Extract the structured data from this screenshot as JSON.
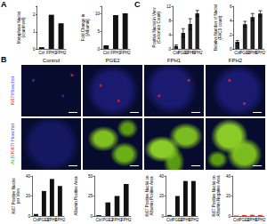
{
  "panel_labels": [
    "A",
    "B",
    "C"
  ],
  "images": {
    "columns": [
      "Control",
      "PGE2",
      "FPH1",
      "FPH2"
    ],
    "rows": [
      {
        "label": [
          {
            "text": "Ki67",
            "color": "#e02828"
          },
          {
            "text": "/",
            "color": "#3a4cff"
          },
          {
            "text": "Hoechst",
            "color": "#3a4cff"
          }
        ]
      },
      {
        "label": [
          {
            "text": "ALB",
            "color": "#38c23a"
          },
          {
            "text": "/",
            "color": "#38c23a"
          },
          {
            "text": "Ki67",
            "color": "#e02828"
          },
          {
            "text": "/ ",
            "color": "#3a4cff"
          },
          {
            "text": "Hoechst",
            "color": "#3a4cff"
          }
        ]
      }
    ]
  },
  "chart_data": [
    {
      "type": "bar",
      "ylabel": "Metaphase Nuclei\n(count/well)",
      "categories": [
        "Ctrl",
        "FPH1",
        "FPH2"
      ],
      "values": [
        0.1,
        2,
        1.5
      ],
      "color": "#111111",
      "ylim": [
        0,
        2.5
      ],
      "yticks": [
        0,
        1,
        2
      ]
    },
    {
      "type": "bar",
      "ylabel": "Fold Change in\n[Albumin]",
      "categories": [
        "Ctrl",
        "FPH1",
        "FPH2"
      ],
      "values": [
        1,
        9.5,
        10
      ],
      "color": "#111111",
      "ylim": [
        0,
        12
      ],
      "yticks": [
        0,
        5,
        10
      ]
    },
    {
      "type": "bar",
      "ylabel": "Positive Nuclei in View\n(Cellomics Count)",
      "categories": [
        "Ctrl",
        "PGE2",
        "FPH1",
        "FPH2"
      ],
      "values": [
        0.8,
        4.5,
        7,
        10
      ],
      "errors": [
        0.3,
        1.2,
        1.5,
        0.8
      ],
      "color": "#222222",
      "ylim": [
        0,
        12
      ],
      "yticks": [
        0,
        4,
        8,
        12
      ]
    },
    {
      "type": "bar",
      "ylabel": "Relative Number of Nuclei\n(FACS count)",
      "categories": [
        "Ctrl",
        "PGE2",
        "FPH1",
        "FPH2"
      ],
      "values": [
        1,
        3.5,
        4.5,
        5
      ],
      "errors": [
        0.2,
        0.4,
        0.5,
        0.4
      ],
      "color": "#222222",
      "ylim": [
        0,
        6
      ],
      "yticks": [
        0,
        2,
        4,
        6
      ]
    },
    {
      "type": "bar",
      "ylabel": "Ki67 Positive Nuclei\nper View",
      "categories": [
        "Ctrl",
        "PGE2",
        "FPH1",
        "FPH2"
      ],
      "values": [
        2,
        25,
        37,
        30
      ],
      "color": "#111111",
      "ylim": [
        0,
        40
      ],
      "yticks": [
        0,
        20,
        40
      ]
    },
    {
      "type": "bar",
      "ylabel": "Albumin Positive Area",
      "categories": [
        "Ctrl",
        "PGE2",
        "FPH1",
        "FPH2"
      ],
      "values": [
        1,
        17,
        25,
        40
      ],
      "color": "#111111",
      "ylim": [
        0,
        50
      ],
      "yticks": [
        0,
        25,
        50
      ]
    },
    {
      "type": "bar",
      "ylabel": "Ki67 Positive Nuclei on\nAlbumin Positive Area",
      "categories": [
        "Ctrl",
        "PGE2",
        "FPH1",
        "FPH2"
      ],
      "values": [
        1,
        20,
        35,
        35
      ],
      "color": "#111111",
      "ylim": [
        0,
        40
      ],
      "yticks": [
        0,
        20,
        40
      ]
    },
    {
      "type": "bar",
      "ylabel": "Ki67 Positive Nuclei on\nAlbumin Negative Area",
      "categories": [
        "Ctrl",
        "PGE2",
        "FPH1",
        "FPH2"
      ],
      "values": [
        0.5,
        1,
        1.2,
        1
      ],
      "color": "#e03030",
      "ylim": [
        0,
        40
      ],
      "yticks": [
        0,
        20,
        40
      ]
    }
  ]
}
